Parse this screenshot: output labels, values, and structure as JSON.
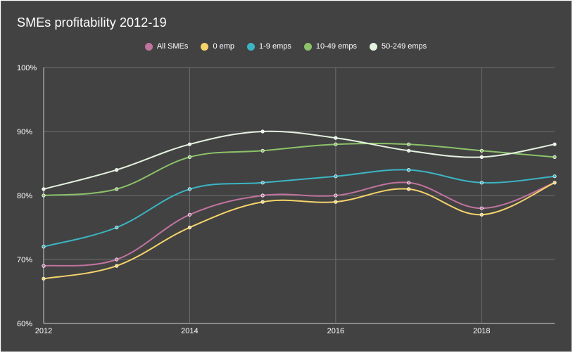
{
  "chart_data": {
    "type": "line",
    "title": "SMEs profitability 2012-19",
    "x": [
      2012,
      2013,
      2014,
      2015,
      2016,
      2017,
      2018,
      2019
    ],
    "xlim": [
      2012,
      2019
    ],
    "x_ticks": [
      2012,
      2014,
      2016,
      2018
    ],
    "ylim": [
      60,
      100
    ],
    "y_ticks": [
      60,
      70,
      80,
      90,
      100
    ],
    "y_tick_suffix": "%",
    "grid": true,
    "legend_position": "top",
    "series": [
      {
        "name": "All SMEs",
        "color": "#c0739e",
        "values": [
          69,
          70,
          77,
          80,
          80,
          82,
          78,
          82
        ]
      },
      {
        "name": "0 emp",
        "color": "#f5d36a",
        "values": [
          67,
          69,
          75,
          79,
          79,
          81,
          77,
          82
        ]
      },
      {
        "name": "1-9 emps",
        "color": "#3bb5c4",
        "values": [
          72,
          75,
          81,
          82,
          83,
          84,
          82,
          83
        ]
      },
      {
        "name": "10-49 emps",
        "color": "#8cc26a",
        "values": [
          80,
          81,
          86,
          87,
          88,
          88,
          87,
          86
        ]
      },
      {
        "name": "50-249 emps",
        "color": "#e4f2e0",
        "values": [
          81,
          84,
          88,
          90,
          89,
          87,
          86,
          88
        ]
      }
    ]
  }
}
